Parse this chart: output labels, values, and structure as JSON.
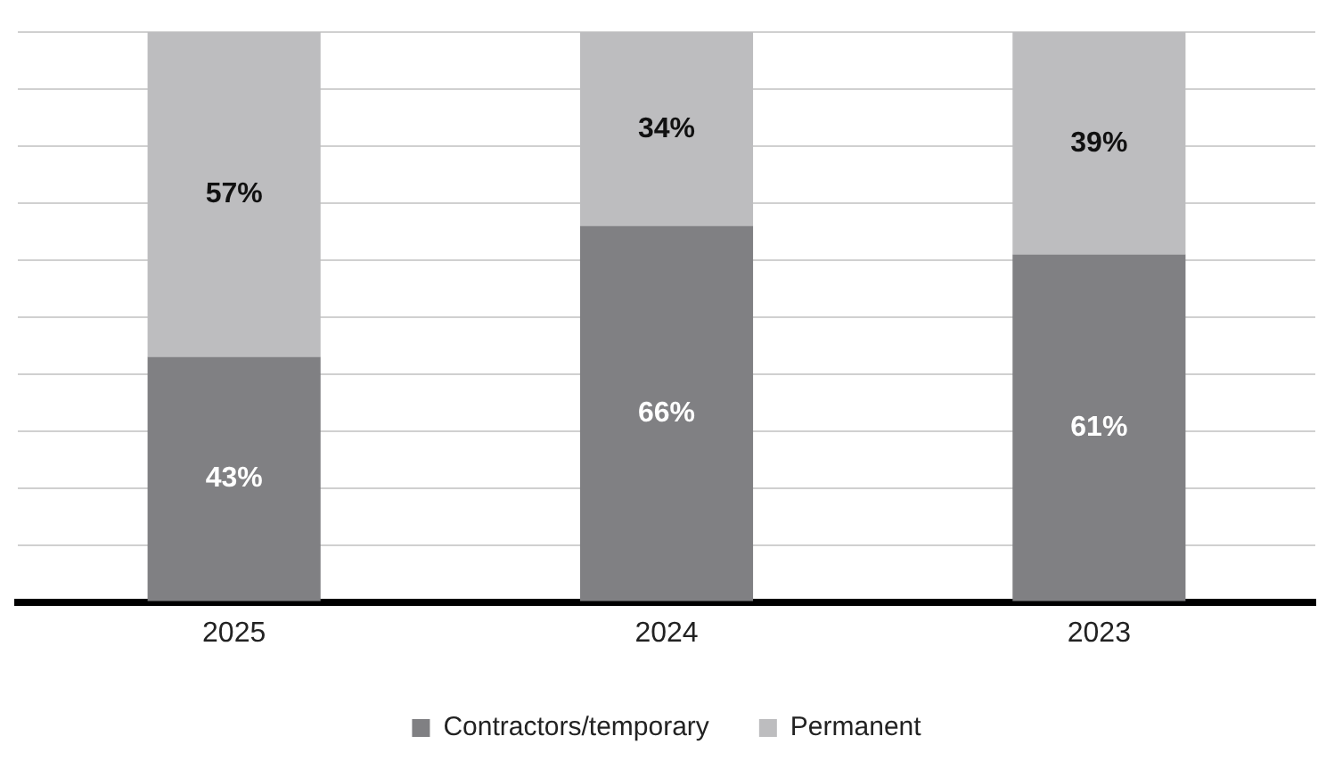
{
  "chart_data": {
    "type": "bar",
    "stacked": true,
    "categories": [
      "2025",
      "2024",
      "2023"
    ],
    "series": [
      {
        "name": "Contractors/temporary",
        "color": "#808083",
        "values": [
          43,
          66,
          61
        ],
        "value_labels": [
          "43%",
          "66%",
          "61%"
        ]
      },
      {
        "name": "Permanent",
        "color": "#bdbdbf",
        "values": [
          57,
          34,
          39
        ],
        "value_labels": [
          "57%",
          "34%",
          "39%"
        ]
      }
    ],
    "ylim": [
      0,
      100
    ],
    "yticks": [
      {
        "value": 0,
        "label": null
      },
      {
        "value": 10,
        "label": null
      },
      {
        "value": 20,
        "label": null
      },
      {
        "value": 30,
        "label": null
      },
      {
        "value": 40,
        "label": null
      },
      {
        "value": 50,
        "label": null
      },
      {
        "value": 60,
        "label": null
      },
      {
        "value": 70,
        "label": null
      },
      {
        "value": 80,
        "label": null
      },
      {
        "value": 90,
        "label": null
      },
      {
        "value": 100,
        "label": null
      }
    ],
    "grid": "y",
    "tick_labels": "x",
    "legend": "bottom"
  }
}
